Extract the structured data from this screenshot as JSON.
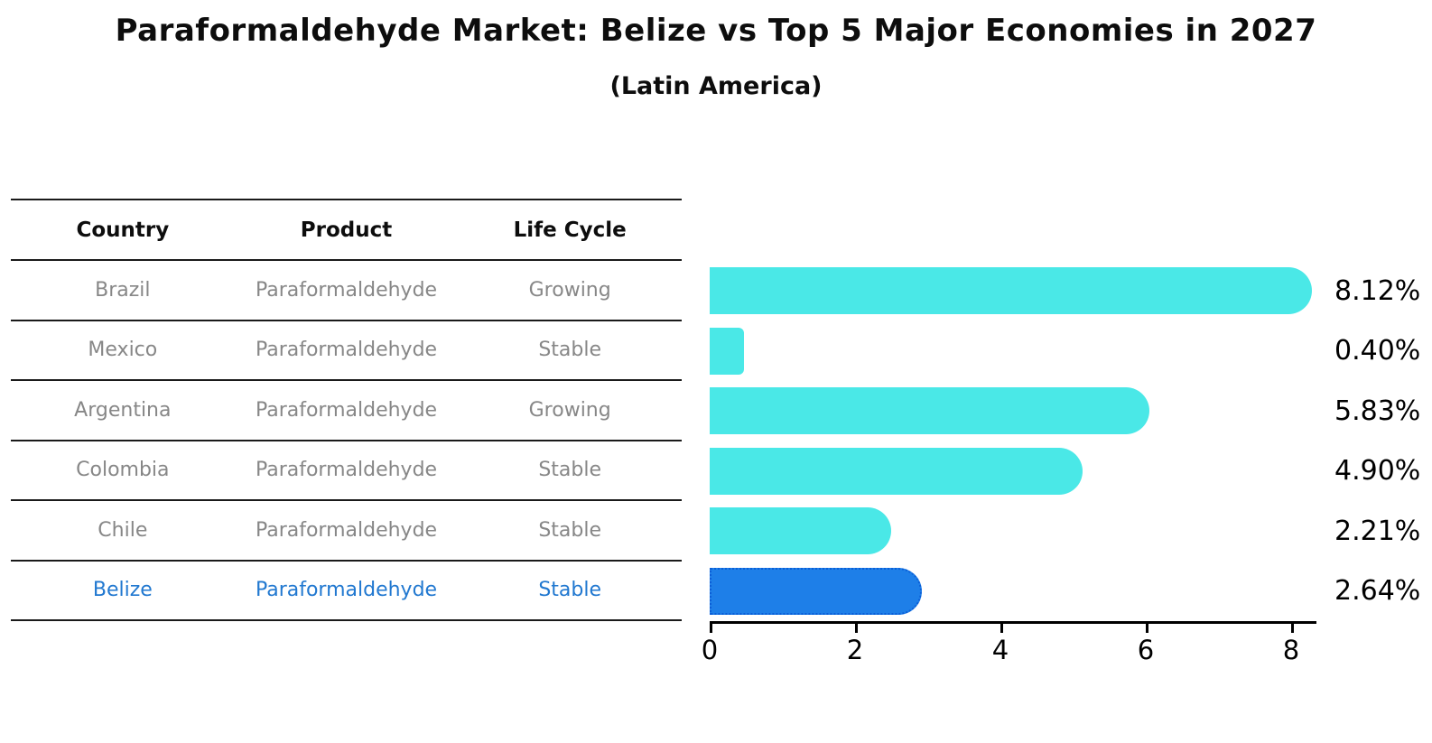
{
  "title": "Paraformaldehyde Market: Belize vs Top 5 Major Economies in 2027",
  "subtitle": "(Latin America)",
  "table": {
    "headers": [
      "Country",
      "Product",
      "Life Cycle"
    ],
    "rows": [
      {
        "country": "Brazil",
        "product": "Paraformaldehyde",
        "life_cycle": "Growing",
        "highlight": false
      },
      {
        "country": "Mexico",
        "product": "Paraformaldehyde",
        "life_cycle": "Stable",
        "highlight": false
      },
      {
        "country": "Argentina",
        "product": "Paraformaldehyde",
        "life_cycle": "Growing",
        "highlight": false
      },
      {
        "country": "Colombia",
        "product": "Paraformaldehyde",
        "life_cycle": "Stable",
        "highlight": false
      },
      {
        "country": "Chile",
        "product": "Paraformaldehyde",
        "life_cycle": "Stable",
        "highlight": false
      },
      {
        "country": "Belize",
        "product": "Paraformaldehyde",
        "life_cycle": "Stable",
        "highlight": true
      }
    ]
  },
  "chart_data": {
    "type": "bar",
    "orientation": "horizontal",
    "title": "Paraformaldehyde Market: Belize vs Top 5 Major Economies in 2027 (Latin America)",
    "categories": [
      "Brazil",
      "Mexico",
      "Argentina",
      "Colombia",
      "Chile",
      "Belize"
    ],
    "values": [
      8.12,
      0.4,
      5.83,
      4.9,
      2.21,
      2.64
    ],
    "value_labels": [
      "8.12%",
      "0.40%",
      "5.83%",
      "4.90%",
      "2.21%",
      "2.64%"
    ],
    "xlabel": "",
    "ylabel": "",
    "xlim": [
      0,
      8.6
    ],
    "xticks": [
      "0",
      "2",
      "4",
      "6",
      "8"
    ],
    "grid": false,
    "legend": false,
    "highlight_category": "Belize",
    "bar_color": "#4ae8e7",
    "highlight_bar_color": "#1e7fe8",
    "highlight_border_color": "#0b5ed7",
    "highlight_text_color": "#2178d0"
  }
}
